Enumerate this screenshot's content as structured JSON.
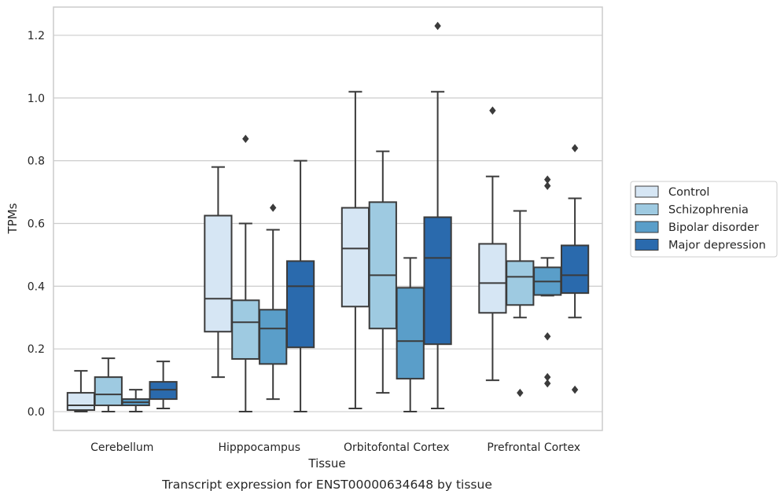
{
  "chart_data": {
    "type": "box",
    "caption": "Transcript expression for ENST00000634648 by tissue",
    "xlabel": "Tissue",
    "ylabel": "TPMs",
    "ylim": [
      -0.06,
      1.29
    ],
    "yticks": [
      "0.0",
      "0.2",
      "0.4",
      "0.6",
      "0.8",
      "1.0",
      "1.2"
    ],
    "ytick_values": [
      0,
      0.2,
      0.4,
      0.6,
      0.8,
      1.0,
      1.2
    ],
    "grid": true,
    "legend_position": "right",
    "categories": [
      "Cerebellum",
      "Hipppocampus",
      "Orbitofontal Cortex",
      "Prefrontal Cortex"
    ],
    "series": [
      {
        "name": "Control",
        "color": "#d6e6f4",
        "boxes": [
          {
            "whislo": 0.0,
            "q1": 0.005,
            "med": 0.02,
            "q3": 0.06,
            "whishi": 0.13,
            "fliers": []
          },
          {
            "whislo": 0.11,
            "q1": 0.255,
            "med": 0.36,
            "q3": 0.625,
            "whishi": 0.78,
            "fliers": []
          },
          {
            "whislo": 0.01,
            "q1": 0.335,
            "med": 0.52,
            "q3": 0.65,
            "whishi": 1.02,
            "fliers": []
          },
          {
            "whislo": 0.1,
            "q1": 0.315,
            "med": 0.41,
            "q3": 0.535,
            "whishi": 0.75,
            "fliers": [
              0.96
            ]
          }
        ]
      },
      {
        "name": "Schizophrenia",
        "color": "#9ecae1",
        "boxes": [
          {
            "whislo": 0.0,
            "q1": 0.02,
            "med": 0.055,
            "q3": 0.11,
            "whishi": 0.17,
            "fliers": []
          },
          {
            "whislo": 0.0,
            "q1": 0.168,
            "med": 0.285,
            "q3": 0.355,
            "whishi": 0.6,
            "fliers": [
              0.87
            ]
          },
          {
            "whislo": 0.06,
            "q1": 0.265,
            "med": 0.435,
            "q3": 0.668,
            "whishi": 0.83,
            "fliers": []
          },
          {
            "whislo": 0.3,
            "q1": 0.34,
            "med": 0.43,
            "q3": 0.48,
            "whishi": 0.64,
            "fliers": [
              0.06
            ]
          }
        ]
      },
      {
        "name": "Bipolar disorder",
        "color": "#5a9ec9",
        "boxes": [
          {
            "whislo": 0.0,
            "q1": 0.02,
            "med": 0.03,
            "q3": 0.04,
            "whishi": 0.07,
            "fliers": []
          },
          {
            "whislo": 0.04,
            "q1": 0.152,
            "med": 0.265,
            "q3": 0.325,
            "whishi": 0.58,
            "fliers": [
              0.65
            ]
          },
          {
            "whislo": 0.0,
            "q1": 0.105,
            "med": 0.225,
            "q3": 0.395,
            "whishi": 0.49,
            "fliers": []
          },
          {
            "whislo": 0.37,
            "q1": 0.372,
            "med": 0.415,
            "q3": 0.46,
            "whishi": 0.49,
            "fliers": [
              0.74,
              0.72,
              0.24,
              0.11,
              0.09
            ]
          }
        ]
      },
      {
        "name": "Major depression",
        "color": "#2a6aad",
        "boxes": [
          {
            "whislo": 0.01,
            "q1": 0.04,
            "med": 0.07,
            "q3": 0.095,
            "whishi": 0.16,
            "fliers": []
          },
          {
            "whislo": 0.0,
            "q1": 0.205,
            "med": 0.4,
            "q3": 0.48,
            "whishi": 0.8,
            "fliers": []
          },
          {
            "whislo": 0.01,
            "q1": 0.215,
            "med": 0.49,
            "q3": 0.62,
            "whishi": 1.02,
            "fliers": [
              1.23
            ]
          },
          {
            "whislo": 0.3,
            "q1": 0.378,
            "med": 0.435,
            "q3": 0.53,
            "whishi": 0.68,
            "fliers": [
              0.84,
              0.07
            ]
          }
        ]
      }
    ]
  }
}
